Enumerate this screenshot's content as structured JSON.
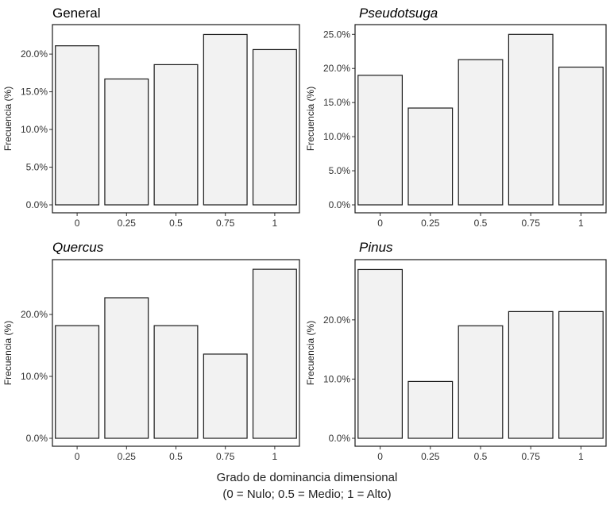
{
  "x_title_line1": "Grado de dominancia dimensional",
  "x_title_line2": "(0 = Nulo; 0.5 = Medio; 1 = Alto)",
  "chart_data": [
    {
      "type": "bar",
      "title": "General",
      "title_italic": false,
      "categories": [
        "0",
        "0.25",
        "0.5",
        "0.75",
        "1"
      ],
      "values": [
        21.1,
        16.7,
        18.6,
        22.6,
        20.6
      ],
      "ylabel": "Frecuencia (%)",
      "ylim": [
        0,
        23.7
      ],
      "yticks": [
        0,
        5,
        10,
        15,
        20
      ],
      "ytick_labels": [
        "0.0%",
        "5.0%",
        "10.0%",
        "15.0%",
        "20.0%"
      ]
    },
    {
      "type": "bar",
      "title": "Pseudotsuga",
      "title_italic": true,
      "categories": [
        "0",
        "0.25",
        "0.5",
        "0.75",
        "1"
      ],
      "values": [
        19.0,
        14.2,
        21.3,
        25.0,
        20.2
      ],
      "ylabel": "Frecuencia (%)",
      "ylim": [
        0,
        26.2
      ],
      "yticks": [
        0,
        5,
        10,
        15,
        20,
        25
      ],
      "ytick_labels": [
        "0.0%",
        "5.0%",
        "10.0%",
        "15.0%",
        "20.0%",
        "25.0%"
      ]
    },
    {
      "type": "bar",
      "title": "Quercus",
      "title_italic": true,
      "categories": [
        "0",
        "0.25",
        "0.5",
        "0.75",
        "1"
      ],
      "values": [
        18.2,
        22.7,
        18.2,
        13.6,
        27.3
      ],
      "ylabel": "Frecuencia (%)",
      "ylim": [
        0,
        28.6
      ],
      "yticks": [
        0,
        10,
        20
      ],
      "ytick_labels": [
        "0.0%",
        "10.0%",
        "20.0%"
      ]
    },
    {
      "type": "bar",
      "title": "Pinus",
      "title_italic": true,
      "categories": [
        "0",
        "0.25",
        "0.5",
        "0.75",
        "1"
      ],
      "values": [
        28.5,
        9.6,
        19.0,
        21.4,
        21.4
      ],
      "ylabel": "Frecuencia (%)",
      "ylim": [
        0,
        29.9
      ],
      "yticks": [
        0,
        10,
        20
      ],
      "ytick_labels": [
        "0.0%",
        "10.0%",
        "20.0%"
      ]
    }
  ]
}
